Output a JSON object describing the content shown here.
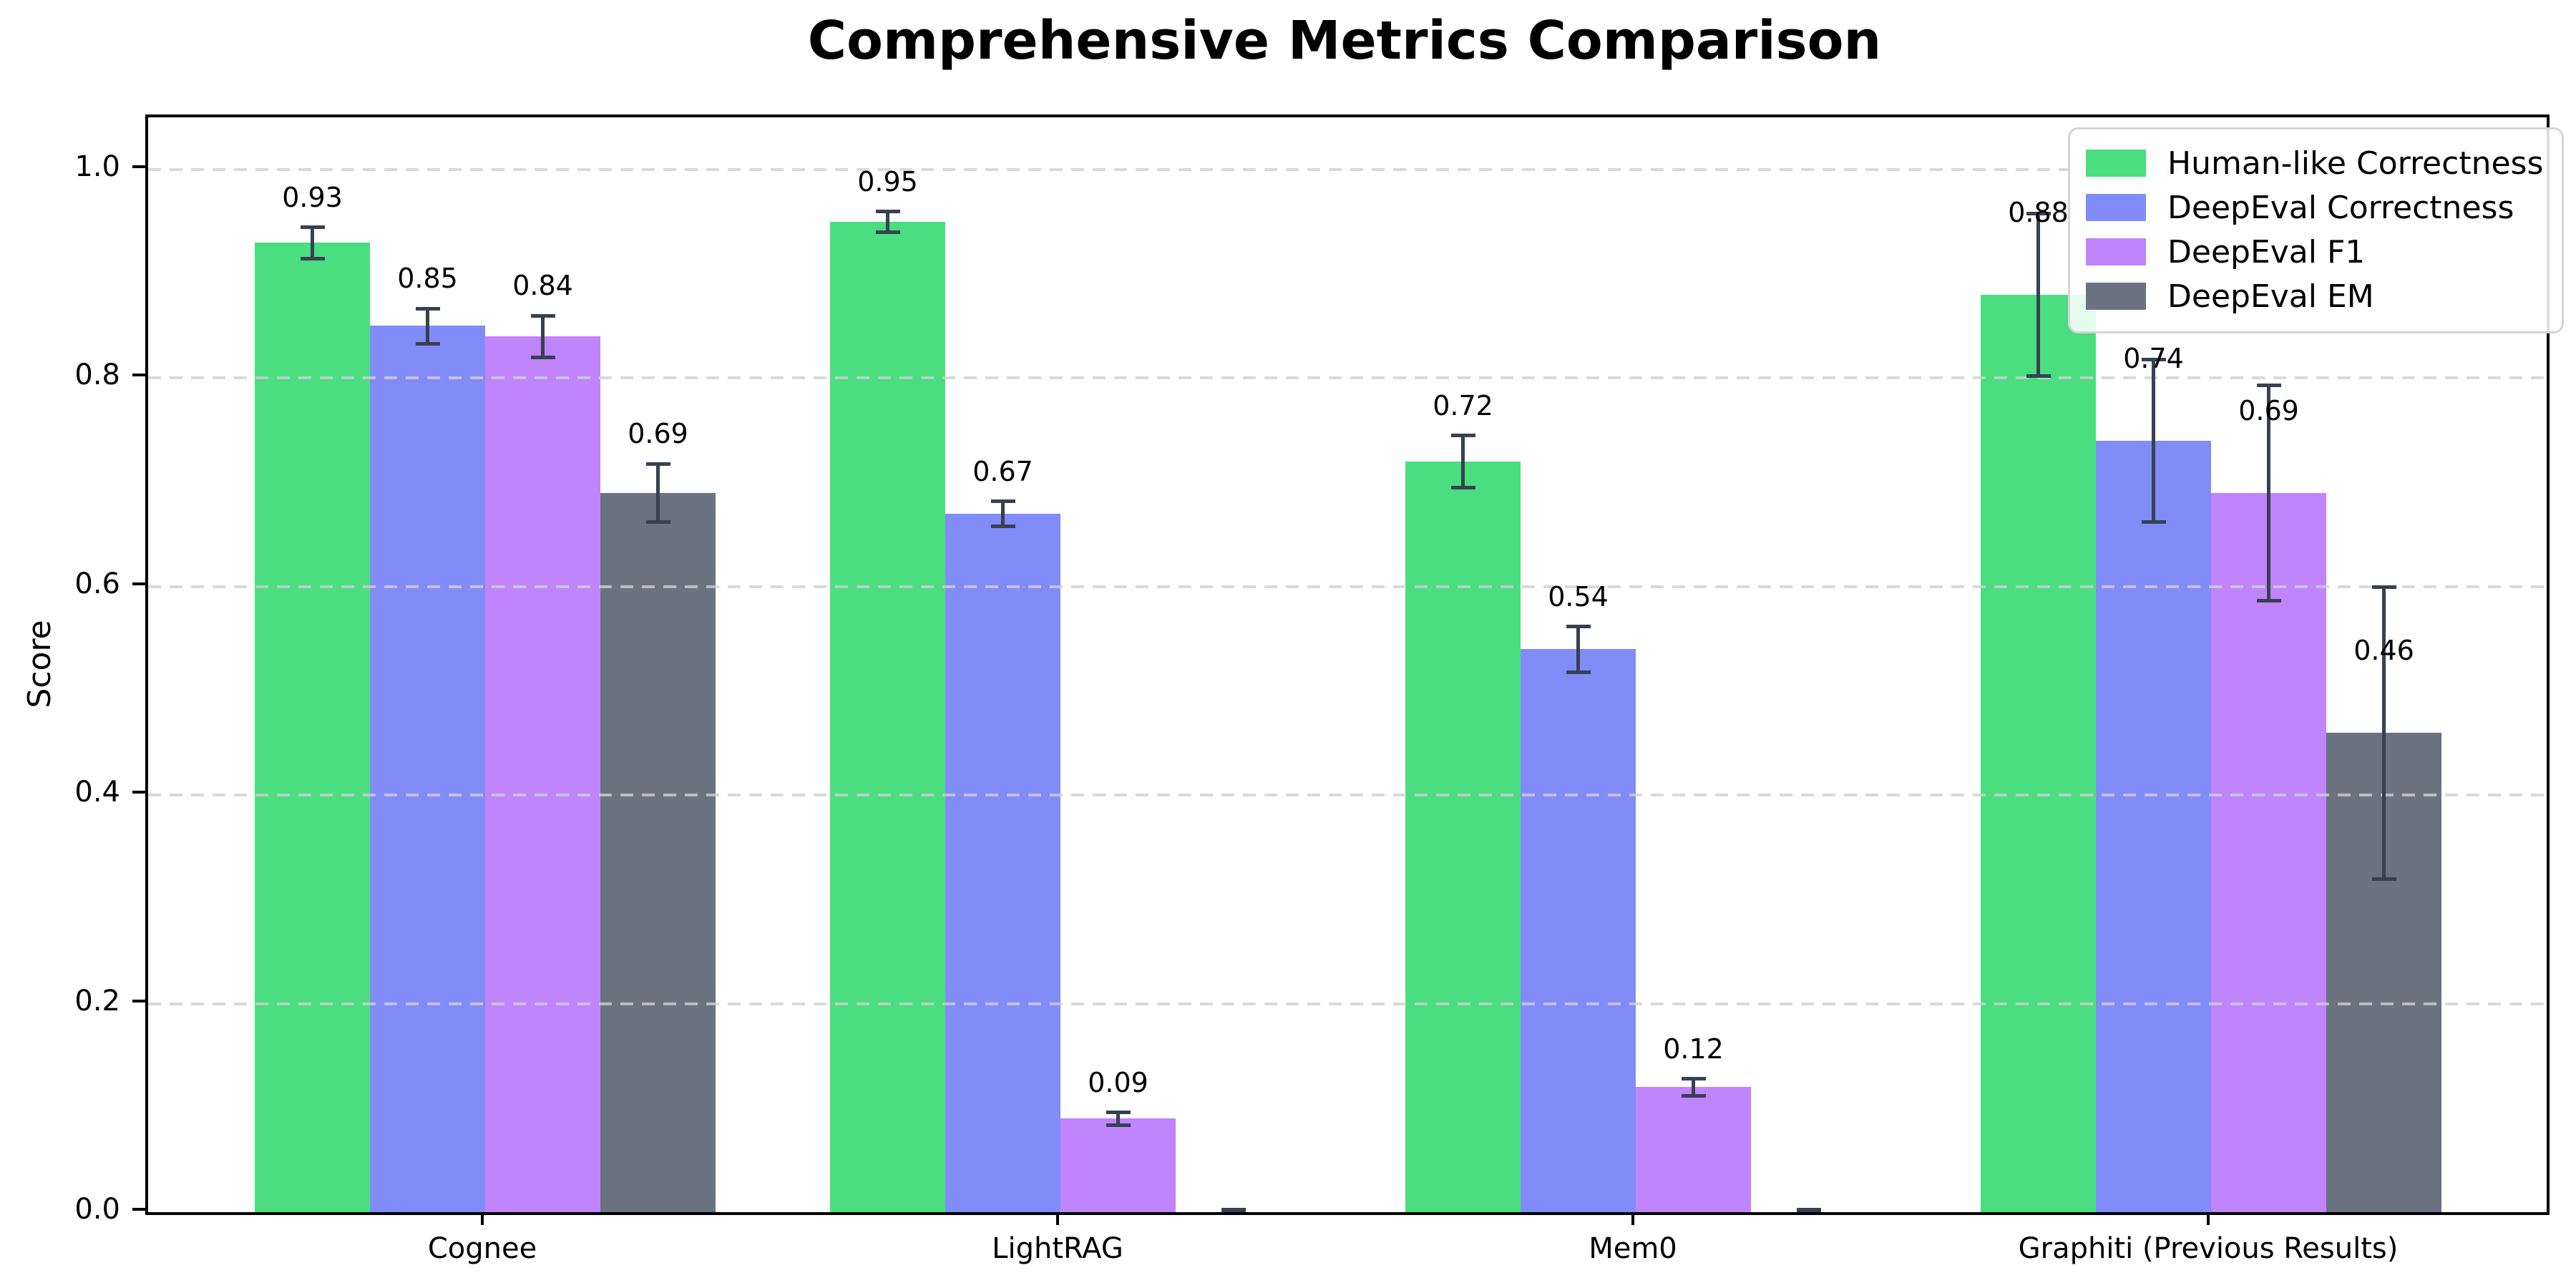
{
  "chart_data": {
    "type": "bar",
    "title": "Comprehensive Metrics Comparison",
    "xlabel": "",
    "ylabel": "Score",
    "categories": [
      "Cognee",
      "LightRAG",
      "Mem0",
      "Graphiti (Previous Results)"
    ],
    "series": [
      {
        "name": "Human-like Correctness",
        "color": "#4ade80",
        "values": [
          0.93,
          0.95,
          0.72,
          0.88
        ],
        "errors": [
          0.015,
          0.01,
          0.025,
          0.078
        ],
        "labels": [
          "0.93",
          "0.95",
          "0.72",
          "0.88"
        ]
      },
      {
        "name": "DeepEval Correctness",
        "color": "#818cf8",
        "values": [
          0.85,
          0.67,
          0.54,
          0.74
        ],
        "errors": [
          0.017,
          0.012,
          0.022,
          0.078
        ],
        "labels": [
          "0.85",
          "0.67",
          "0.54",
          "0.74"
        ]
      },
      {
        "name": "DeepEval F1",
        "color": "#c084fc",
        "values": [
          0.84,
          0.09,
          0.12,
          0.69
        ],
        "errors": [
          0.02,
          0.006,
          0.008,
          0.103
        ],
        "labels": [
          "0.84",
          "0.09",
          "0.12",
          "0.69"
        ]
      },
      {
        "name": "DeepEval EM",
        "color": "#6b7280",
        "values": [
          0.69,
          0.0,
          0.0,
          0.46
        ],
        "errors": [
          0.028,
          0.003,
          0.003,
          0.14
        ],
        "labels": [
          "0.69",
          "",
          "",
          "0.46"
        ]
      }
    ],
    "ylim": [
      0,
      1.05
    ],
    "yticks": [
      "0.0",
      "0.2",
      "0.4",
      "0.6",
      "0.8",
      "1.0"
    ],
    "ytick_values": [
      0.0,
      0.2,
      0.4,
      0.6,
      0.8,
      1.0
    ],
    "grid": "horizontal-dashed",
    "legend_position": "upper right",
    "error_bar_color": "#374151",
    "background_color": "#ffffff"
  }
}
